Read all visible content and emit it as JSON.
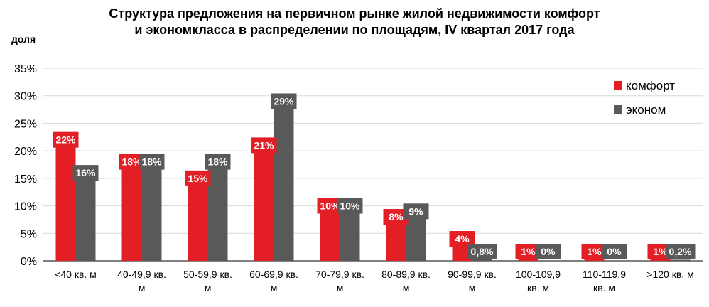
{
  "chart_data": {
    "type": "bar",
    "title_lines": [
      "Структура  предложения на первичном рынке жилой недвижимости комфорт",
      "и  экономкласса в распределении по площадям, IV  квартал 2017 года"
    ],
    "ylabel": "доля",
    "xlabel": "",
    "ylim": [
      0,
      35
    ],
    "y_ticks": [
      "0%",
      "5%",
      "10%",
      "15%",
      "20%",
      "25%",
      "30%",
      "35%"
    ],
    "grid": true,
    "legend_position": "right",
    "categories": [
      [
        "<40 кв. м"
      ],
      [
        "40-49,9 кв.",
        "м"
      ],
      [
        "50-59,9 кв.",
        "м"
      ],
      [
        "60-69,9 кв.",
        "м"
      ],
      [
        "70-79,9 кв.",
        "м"
      ],
      [
        "80-89,9 кв.",
        "м"
      ],
      [
        "90-99,9 кв.",
        "м"
      ],
      [
        "100-109,9",
        "кв. м"
      ],
      [
        "110-119,9",
        "кв. м"
      ],
      [
        ">120 кв. м"
      ]
    ],
    "series": [
      {
        "name": "комфорт",
        "color": "#e31e24",
        "values": [
          22,
          18,
          15,
          21,
          10,
          8,
          4,
          1,
          1,
          1
        ],
        "labels": [
          "22%",
          "18%",
          "15%",
          "21%",
          "10%",
          "8%",
          "4%",
          "1%",
          "1%",
          "1%"
        ]
      },
      {
        "name": "эконом",
        "color": "#595959",
        "values": [
          16,
          18,
          18,
          29,
          10,
          9,
          0.8,
          0,
          0,
          0.2
        ],
        "labels": [
          "16%",
          "18%",
          "18%",
          "29%",
          "10%",
          "9%",
          "0,8%",
          "0%",
          "0%",
          "0,2%"
        ]
      }
    ]
  }
}
